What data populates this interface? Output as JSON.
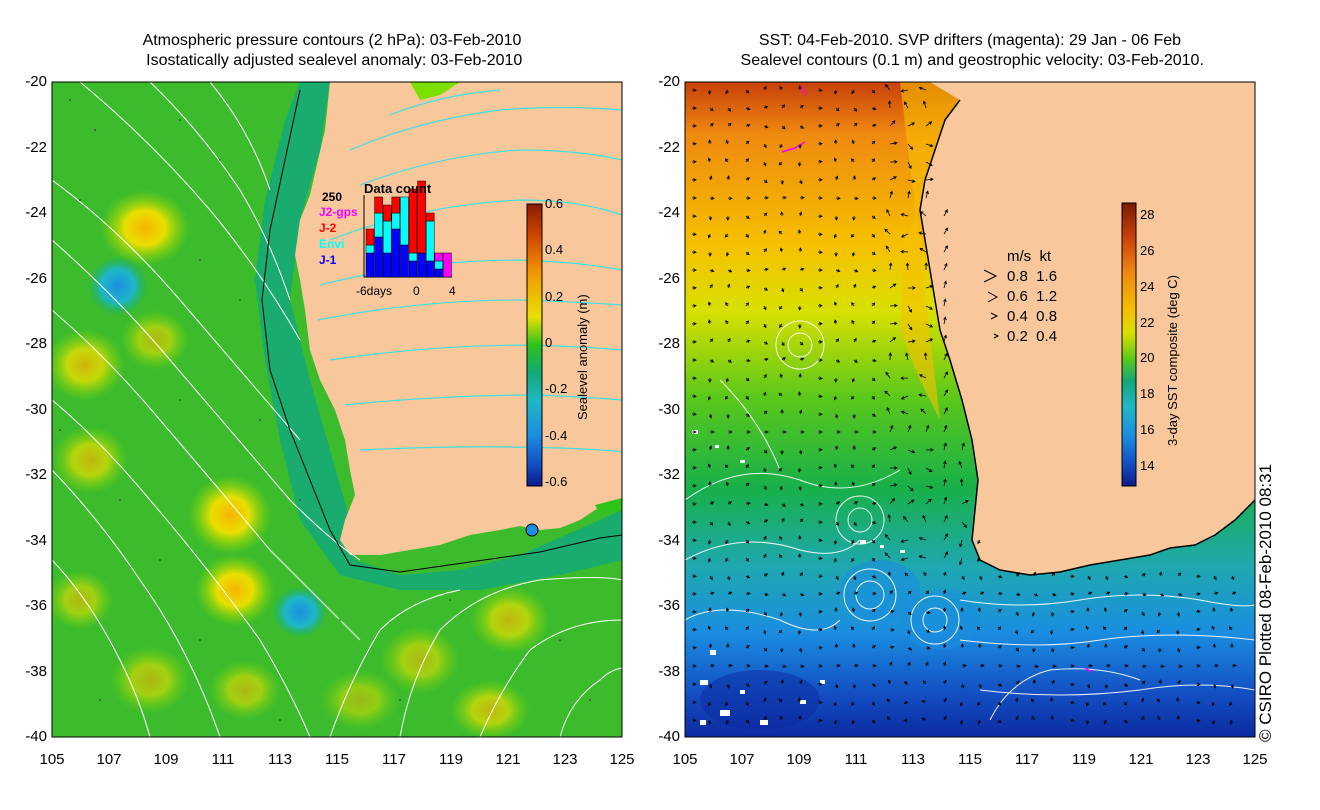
{
  "left_map": {
    "title": "Atmospheric pressure contours (2 hPa): 03-Feb-2010\n Isostatically adjusted sealevel anomaly: 03-Feb-2010",
    "y_ticks": [
      "-20",
      "-22",
      "-24",
      "-26",
      "-28",
      "-30",
      "-32",
      "-34",
      "-36",
      "-38",
      "-40"
    ],
    "x_ticks": [
      "105",
      "107",
      "109",
      "111",
      "113",
      "115",
      "117",
      "119",
      "121",
      "123",
      "125"
    ],
    "colorbar": {
      "label": "Sealevel anomaly (m)",
      "ticks": [
        "0.6",
        "0.4",
        "0.2",
        "0",
        "-0.2",
        "-0.4",
        "-0.6"
      ],
      "colors": [
        "#8b1a00",
        "#d24a00",
        "#f39a00",
        "#f6e000",
        "#9ee000",
        "#2ec21a",
        "#12a878",
        "#1fb7c7",
        "#1a8ee0",
        "#1451c4",
        "#0a1a8c"
      ]
    },
    "data_count": {
      "title": "Data count",
      "y_max_label": "250",
      "x_labels": [
        "-6days",
        "0",
        "4"
      ],
      "legend": [
        {
          "label": "J2-gps",
          "color": "#ff00ff"
        },
        {
          "label": "J-2",
          "color": "#ff0000"
        },
        {
          "label": "Envi",
          "color": "#00ffff"
        },
        {
          "label": "J-1",
          "color": "#0000ff"
        }
      ],
      "bars": [
        {
          "J-1": 0.3,
          "Envi": 0.1,
          "J-2": 0.2
        },
        {
          "J-1": 0.5,
          "Envi": 0.3,
          "J-2": 0.2
        },
        {
          "J-1": 0.3,
          "Envi": 0.4,
          "J-2": 0.2
        },
        {
          "J-1": 0.6,
          "Envi": 0.2,
          "J-2": 0.2
        },
        {
          "J-1": 0.4,
          "Envi": 0.6,
          "J-2": 0.0
        },
        {
          "J-1": 0.2,
          "Envi": 0.1,
          "J-2": 0.8
        },
        {
          "J-1": 0.3,
          "Envi": 0.0,
          "J-2": 0.9
        },
        {
          "J-1": 0.2,
          "Envi": 0.5,
          "J-2": 0.1
        },
        {
          "J-1": 0.1,
          "Envi": 0.1,
          "J-2": 0.0,
          "J2-gps": 0.1
        },
        {
          "J-1": 0.0,
          "Envi": 0.0,
          "J-2": 0.0,
          "J2-gps": 0.3
        }
      ]
    }
  },
  "right_map": {
    "title": "SST: 04-Feb-2010. SVP drifters (magenta): 29 Jan - 06 Feb\n Sealevel contours (0.1 m) and geostrophic velocity: 03-Feb-2010.",
    "y_ticks": [
      "-20",
      "-22",
      "-24",
      "-26",
      "-28",
      "-30",
      "-32",
      "-34",
      "-36",
      "-38",
      "-40"
    ],
    "x_ticks": [
      "105",
      "107",
      "109",
      "111",
      "113",
      "115",
      "117",
      "119",
      "121",
      "123",
      "125"
    ],
    "colorbar": {
      "label": "3-day SST composite (deg C)",
      "ticks": [
        "28",
        "26",
        "24",
        "22",
        "20",
        "18",
        "16",
        "14"
      ],
      "colors": [
        "#7a1a00",
        "#c8400a",
        "#ef8a10",
        "#f6c000",
        "#e6e600",
        "#9ee000",
        "#2ec21a",
        "#12a878",
        "#1fb7c7",
        "#1a8ee0",
        "#1451c4",
        "#0a1a8c"
      ]
    },
    "velocity_legend": {
      "header": "m/s  kt",
      "rows": [
        "0.8  1.6",
        "0.6  1.2",
        "0.4  0.8",
        "0.2  0.4"
      ]
    }
  },
  "credit": "© CSIRO Plotted 08-Feb-2010 08:31",
  "colors": {
    "land": "#f8c89c",
    "ocean_green": "#38b42a",
    "contour_white": "#ffffff",
    "contour_cyan": "#40e0e0"
  }
}
